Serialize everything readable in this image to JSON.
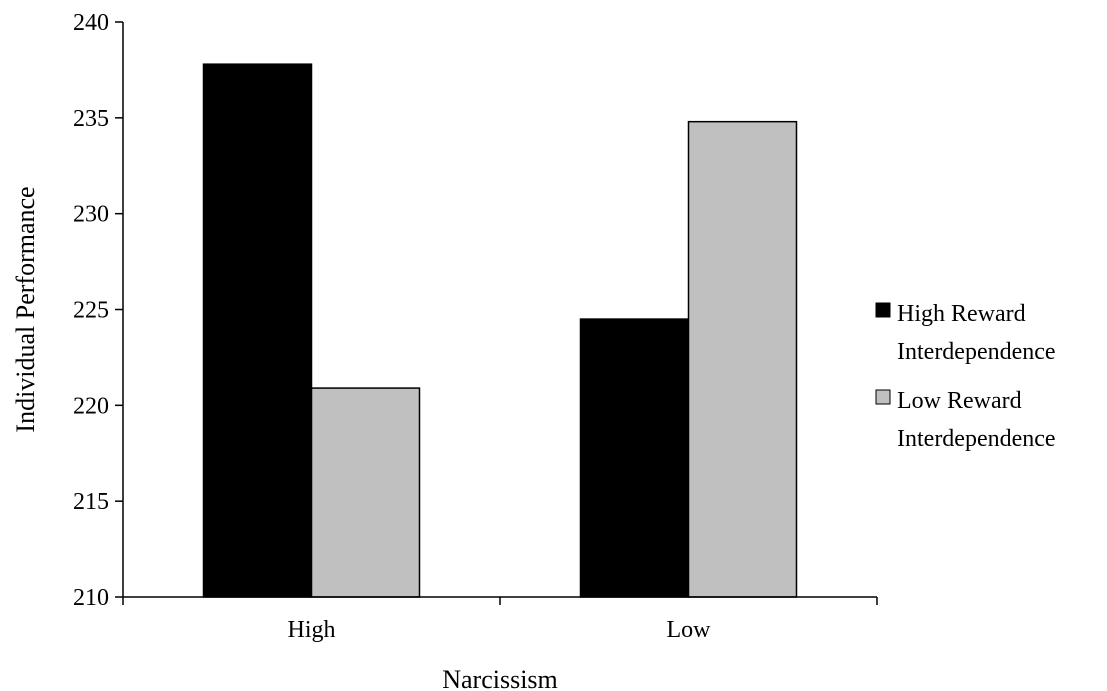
{
  "chart_data": {
    "type": "bar",
    "categories": [
      "High",
      "Low"
    ],
    "series": [
      {
        "name": "High Reward Interdependence",
        "values": [
          237.8,
          224.5
        ],
        "color": "#000000"
      },
      {
        "name": "Low Reward Interdependence",
        "values": [
          220.9,
          234.8
        ],
        "color": "#c0c0c0"
      }
    ],
    "xlabel": "Narcissism",
    "ylabel": "Individual Performance",
    "ylim": [
      210,
      240
    ],
    "yticks": [
      210,
      215,
      220,
      225,
      230,
      235,
      240
    ],
    "legend": {
      "placement": "right",
      "items": [
        {
          "lines": [
            "High Reward",
            "Interdependence"
          ],
          "color": "#000000"
        },
        {
          "lines": [
            "Low Reward",
            "Interdependence"
          ],
          "color": "#c0c0c0"
        }
      ]
    },
    "grid": false
  }
}
